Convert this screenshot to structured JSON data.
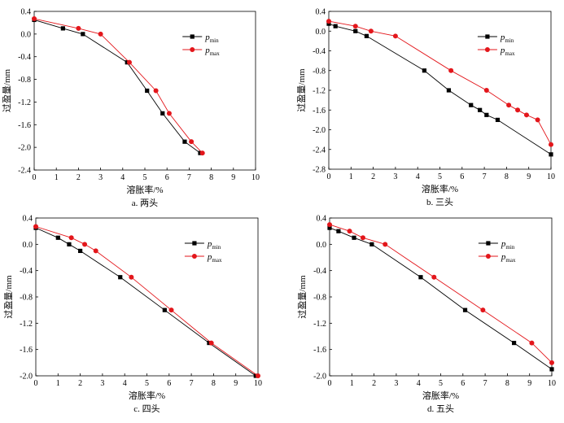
{
  "colors": {
    "pmin": "#000000",
    "pmax": "#e3161b",
    "axis": "#000000"
  },
  "legend": {
    "pmin": {
      "sym": "p",
      "sub": "min"
    },
    "pmax": {
      "sym": "p",
      "sub": "max"
    }
  },
  "chart_data": [
    {
      "type": "line",
      "caption": "a. 两头",
      "xlabel": "溶胀率/%",
      "ylabel": "过盈量/mm",
      "xlim": [
        0,
        10
      ],
      "ylim": [
        -2.4,
        0.4
      ],
      "xticks": [
        "0",
        "1",
        "2",
        "3",
        "4",
        "5",
        "6",
        "7",
        "8",
        "9",
        "10"
      ],
      "yticks": [
        "0.4",
        "0.0",
        "-0.4",
        "-0.8",
        "-1.2",
        "-1.6",
        "-2.0",
        "-2.4"
      ],
      "legend_position": "top-right",
      "grid": false,
      "series": [
        {
          "name": "pmin",
          "x": [
            0,
            1.3,
            2.2,
            4.2,
            5.1,
            5.8,
            6.8,
            7.5
          ],
          "y": [
            0.25,
            0.1,
            0.0,
            -0.5,
            -1.0,
            -1.4,
            -1.9,
            -2.1
          ]
        },
        {
          "name": "pmax",
          "x": [
            0,
            2.0,
            3.0,
            4.3,
            5.5,
            6.1,
            7.1,
            7.6
          ],
          "y": [
            0.27,
            0.1,
            0.0,
            -0.5,
            -1.0,
            -1.4,
            -1.9,
            -2.1
          ]
        }
      ]
    },
    {
      "type": "line",
      "caption": "b. 三头",
      "xlabel": "溶胀率/%",
      "ylabel": "过盈量/mm",
      "xlim": [
        0,
        10
      ],
      "ylim": [
        -2.8,
        0.4
      ],
      "xticks": [
        "0",
        "1",
        "2",
        "3",
        "4",
        "5",
        "6",
        "7",
        "8",
        "9",
        "10"
      ],
      "yticks": [
        "0.4",
        "0.0",
        "-0.4",
        "-0.8",
        "-1.2",
        "-1.6",
        "-2.0",
        "-2.4",
        "-2.8"
      ],
      "legend_position": "top-right",
      "grid": false,
      "series": [
        {
          "name": "pmin",
          "x": [
            0,
            0.3,
            1.2,
            1.7,
            4.3,
            5.4,
            6.4,
            6.8,
            7.1,
            7.6,
            10.0
          ],
          "y": [
            0.15,
            0.1,
            0.0,
            -0.1,
            -0.8,
            -1.2,
            -1.5,
            -1.6,
            -1.7,
            -1.8,
            -2.5
          ]
        },
        {
          "name": "pmax",
          "x": [
            0,
            1.2,
            1.9,
            3.0,
            5.5,
            7.1,
            8.1,
            8.5,
            8.9,
            9.4,
            10.0
          ],
          "y": [
            0.2,
            0.1,
            0.0,
            -0.1,
            -0.8,
            -1.2,
            -1.5,
            -1.6,
            -1.7,
            -1.8,
            -2.3
          ]
        }
      ]
    },
    {
      "type": "line",
      "caption": "c. 四头",
      "xlabel": "溶胀率/%",
      "ylabel": "过盈量/mm",
      "xlim": [
        0,
        10
      ],
      "ylim": [
        -2.0,
        0.4
      ],
      "xticks": [
        "0",
        "1",
        "2",
        "3",
        "4",
        "5",
        "6",
        "7",
        "8",
        "9",
        "10"
      ],
      "yticks": [
        "0.4",
        "0.0",
        "-0.4",
        "-0.8",
        "-1.2",
        "-1.6",
        "-2.0"
      ],
      "legend_position": "top-right",
      "grid": false,
      "series": [
        {
          "name": "pmin",
          "x": [
            0,
            1.0,
            1.5,
            2.0,
            3.8,
            5.8,
            7.8,
            9.9
          ],
          "y": [
            0.25,
            0.1,
            0.0,
            -0.1,
            -0.5,
            -1.0,
            -1.5,
            -2.0
          ]
        },
        {
          "name": "pmax",
          "x": [
            0,
            1.6,
            2.2,
            2.7,
            4.3,
            6.1,
            7.9,
            10.0
          ],
          "y": [
            0.27,
            0.1,
            0.0,
            -0.1,
            -0.5,
            -1.0,
            -1.5,
            -2.0
          ]
        }
      ]
    },
    {
      "type": "line",
      "caption": "d. 五头",
      "xlabel": "溶胀率/%",
      "ylabel": "过盈量/mm",
      "xlim": [
        0,
        10
      ],
      "ylim": [
        -2.0,
        0.4
      ],
      "xticks": [
        "0",
        "1",
        "2",
        "3",
        "4",
        "5",
        "6",
        "7",
        "8",
        "9",
        "10"
      ],
      "yticks": [
        "0.4",
        "0.0",
        "-0.4",
        "-0.8",
        "-1.2",
        "-1.6",
        "-2.0"
      ],
      "legend_position": "top-right",
      "grid": false,
      "series": [
        {
          "name": "pmin",
          "x": [
            0,
            0.4,
            1.1,
            1.9,
            4.1,
            6.1,
            8.3,
            10.0
          ],
          "y": [
            0.25,
            0.2,
            0.1,
            0.0,
            -0.5,
            -1.0,
            -1.5,
            -1.9
          ]
        },
        {
          "name": "pmax",
          "x": [
            0,
            0.9,
            1.5,
            2.5,
            4.7,
            6.9,
            9.1,
            10.0
          ],
          "y": [
            0.3,
            0.2,
            0.1,
            0.0,
            -0.5,
            -1.0,
            -1.5,
            -1.8
          ]
        }
      ]
    }
  ]
}
